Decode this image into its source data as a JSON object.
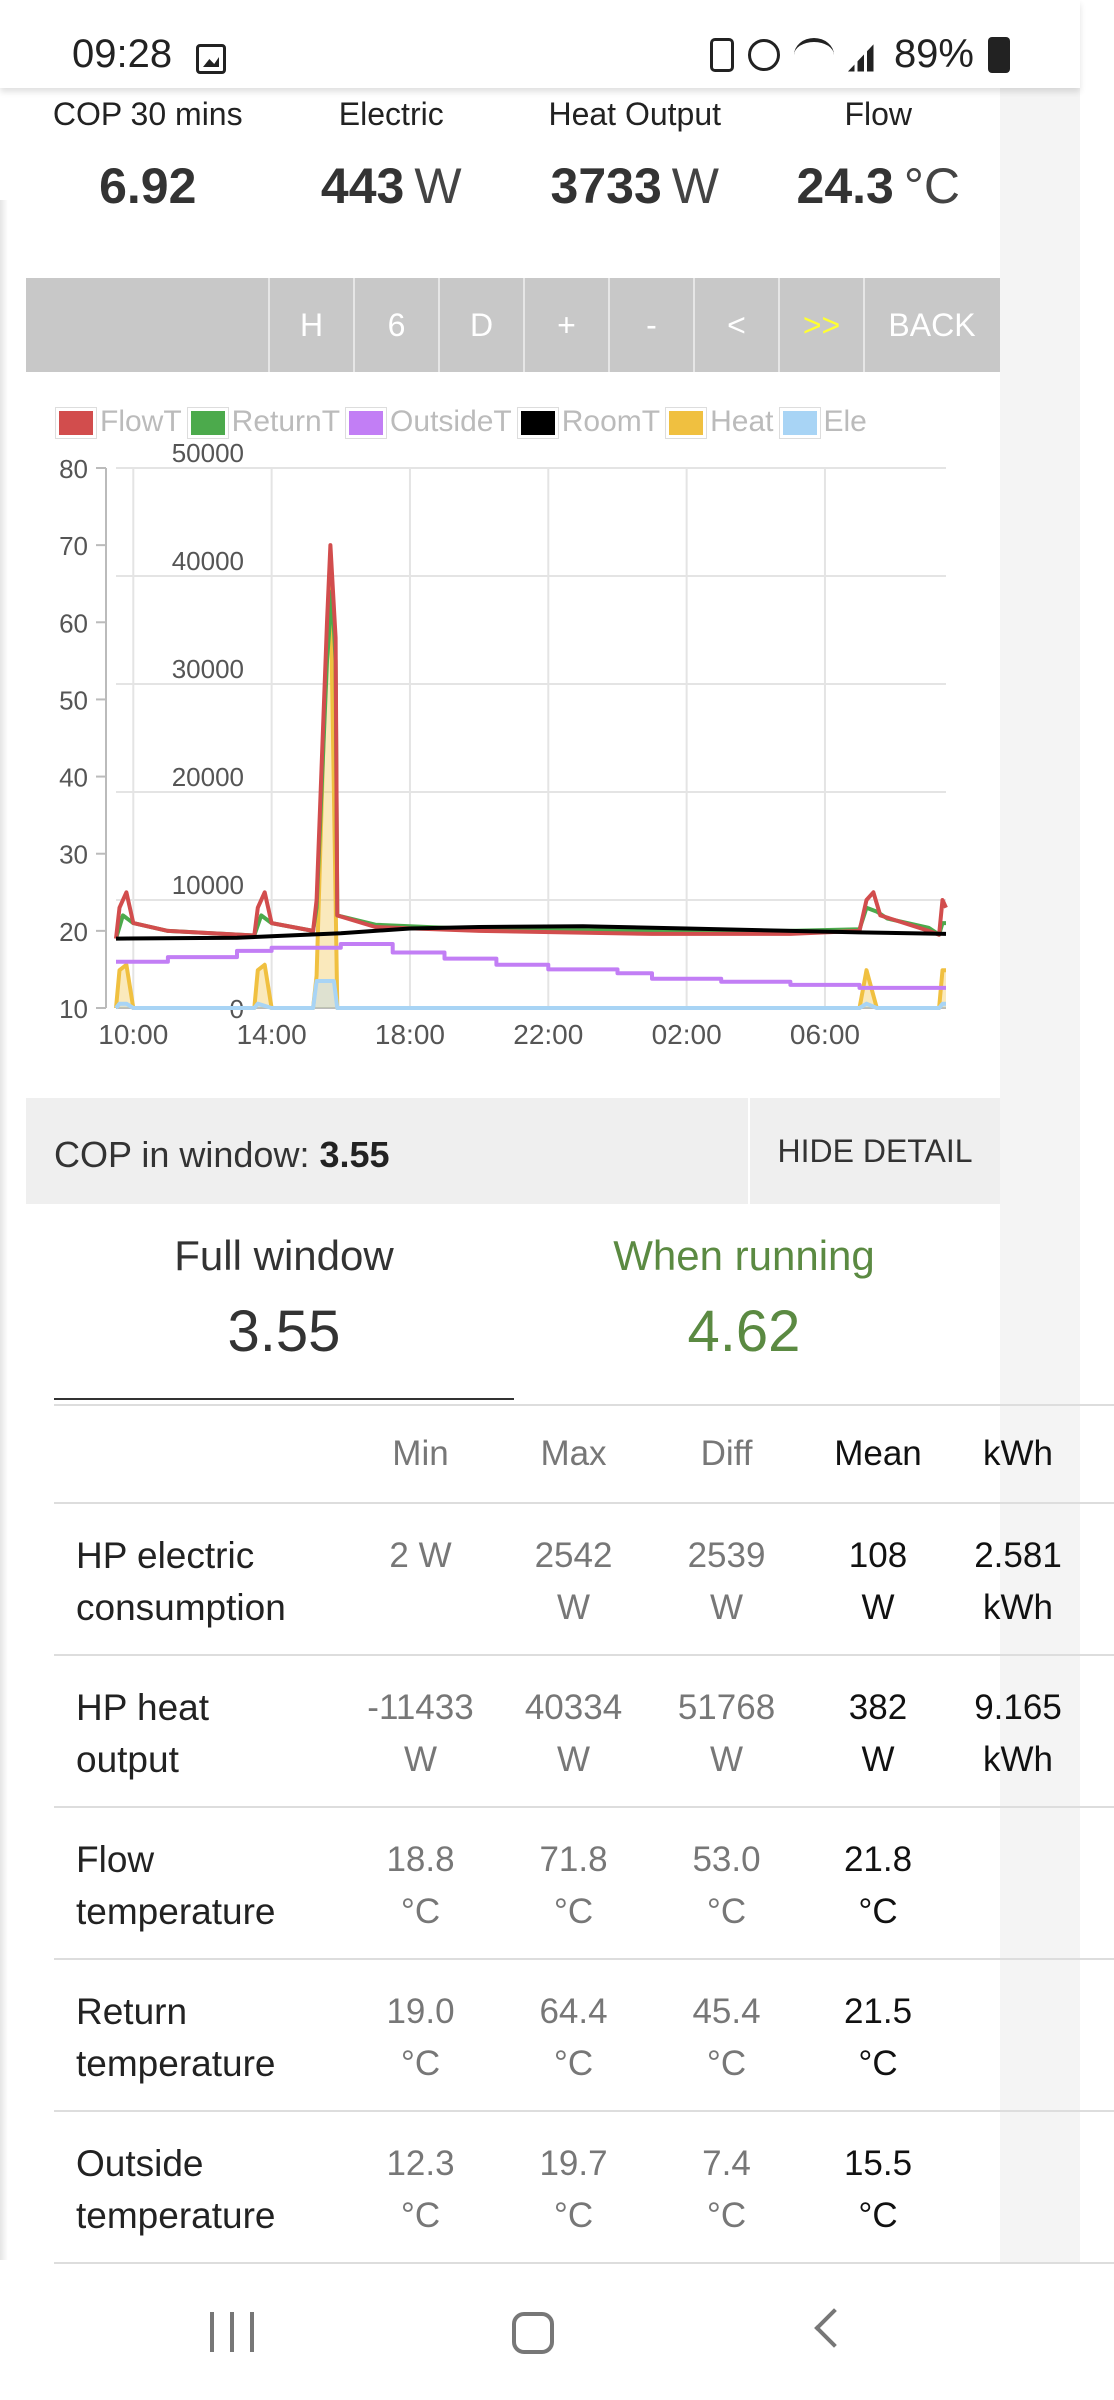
{
  "status_bar": {
    "time": "09:28",
    "battery_percent": "89%",
    "icons": [
      "gallery-icon",
      "battery-saver-icon",
      "alarm-icon",
      "wifi-icon",
      "signal-icon",
      "battery-icon"
    ]
  },
  "metrics": [
    {
      "label": "COP 30 mins",
      "value": "6.92",
      "unit": ""
    },
    {
      "label": "Electric",
      "value": "443",
      "unit": "W"
    },
    {
      "label": "Heat Output",
      "value": "3733",
      "unit": "W"
    },
    {
      "label": "Flow",
      "value": "24.3",
      "unit": "°C"
    }
  ],
  "toolbar": {
    "buttons": [
      "H",
      "6",
      "D",
      "+",
      "-",
      "<",
      ">>",
      "BACK"
    ],
    "active": ">>"
  },
  "legend": [
    {
      "name": "FlowT",
      "color": "#d24d4d"
    },
    {
      "name": "ReturnT",
      "color": "#4caa4c"
    },
    {
      "name": "OutsideT",
      "color": "#c27ef5"
    },
    {
      "name": "RoomT",
      "color": "#000000"
    },
    {
      "name": "Heat",
      "color": "#f0c040"
    },
    {
      "name": "Ele",
      "color": "#a8d4f5"
    }
  ],
  "chart_data": {
    "type": "line",
    "x_ticks": [
      "10:00",
      "14:00",
      "18:00",
      "22:00",
      "02:00",
      "06:00"
    ],
    "y_left_ticks": [
      10,
      20,
      30,
      40,
      50,
      60,
      70,
      80
    ],
    "y_right_ticks": [
      0,
      10000,
      20000,
      30000,
      40000,
      50000
    ],
    "y_left_range": [
      10,
      80
    ],
    "y_right_range": [
      0,
      50000
    ],
    "x_range_hours": [
      9.5,
      33.5
    ],
    "grid": true,
    "series": [
      {
        "name": "FlowT",
        "axis": "left",
        "color": "#d24d4d",
        "points": [
          [
            9.5,
            19
          ],
          [
            9.6,
            23
          ],
          [
            9.8,
            25
          ],
          [
            10.0,
            21
          ],
          [
            11.0,
            20
          ],
          [
            13.5,
            19.4
          ],
          [
            13.6,
            23
          ],
          [
            13.8,
            25
          ],
          [
            14.0,
            21
          ],
          [
            15.2,
            20
          ],
          [
            15.3,
            24
          ],
          [
            15.6,
            60
          ],
          [
            15.7,
            70
          ],
          [
            15.85,
            58
          ],
          [
            15.9,
            22
          ],
          [
            17,
            20.5
          ],
          [
            20,
            20
          ],
          [
            25,
            19.6
          ],
          [
            29,
            19.6
          ],
          [
            31,
            20
          ],
          [
            31.2,
            24
          ],
          [
            31.4,
            25
          ],
          [
            31.6,
            22
          ],
          [
            33,
            20
          ],
          [
            33.3,
            19.5
          ],
          [
            33.4,
            24
          ],
          [
            33.5,
            23
          ]
        ]
      },
      {
        "name": "ReturnT",
        "axis": "left",
        "color": "#4caa4c",
        "points": [
          [
            9.5,
            19
          ],
          [
            9.7,
            22
          ],
          [
            10.0,
            21
          ],
          [
            11.0,
            20
          ],
          [
            13.5,
            19.4
          ],
          [
            13.7,
            22
          ],
          [
            14.0,
            21
          ],
          [
            15.2,
            20
          ],
          [
            15.3,
            23
          ],
          [
            15.6,
            55
          ],
          [
            15.75,
            64
          ],
          [
            15.85,
            55
          ],
          [
            15.9,
            22
          ],
          [
            17,
            20.8
          ],
          [
            20,
            20.2
          ],
          [
            25,
            20
          ],
          [
            29,
            20
          ],
          [
            31,
            20.2
          ],
          [
            31.2,
            23
          ],
          [
            31.5,
            22.5
          ],
          [
            31.8,
            21.6
          ],
          [
            33,
            20.4
          ],
          [
            33.3,
            19.5
          ],
          [
            33.4,
            21
          ],
          [
            33.5,
            21
          ]
        ]
      },
      {
        "name": "OutsideT",
        "axis": "left",
        "color": "#c27ef5",
        "points": [
          [
            9.5,
            16
          ],
          [
            11,
            16
          ],
          [
            11,
            16.6
          ],
          [
            13,
            16.6
          ],
          [
            13,
            17.4
          ],
          [
            14,
            17.4
          ],
          [
            14,
            17.8
          ],
          [
            16,
            17.8
          ],
          [
            16,
            18.3
          ],
          [
            17.5,
            18.3
          ],
          [
            17.5,
            17.2
          ],
          [
            19,
            17.2
          ],
          [
            19,
            16.4
          ],
          [
            20.5,
            16.4
          ],
          [
            20.5,
            15.6
          ],
          [
            22,
            15.6
          ],
          [
            22,
            15
          ],
          [
            24,
            15
          ],
          [
            24,
            14.5
          ],
          [
            25,
            14.5
          ],
          [
            25,
            13.8
          ],
          [
            27,
            13.8
          ],
          [
            27,
            13.4
          ],
          [
            29,
            13.4
          ],
          [
            29,
            13
          ],
          [
            31,
            13
          ],
          [
            31,
            12.6
          ],
          [
            33.5,
            12.6
          ]
        ]
      },
      {
        "name": "RoomT",
        "axis": "left",
        "color": "#000000",
        "points": [
          [
            9.5,
            19
          ],
          [
            13,
            19.1
          ],
          [
            16,
            19.7
          ],
          [
            18,
            20.3
          ],
          [
            20,
            20.5
          ],
          [
            23,
            20.6
          ],
          [
            26,
            20.3
          ],
          [
            29,
            20
          ],
          [
            31,
            19.8
          ],
          [
            33.5,
            19.6
          ]
        ]
      },
      {
        "name": "Heat",
        "axis": "right",
        "color": "#f0c040",
        "points": [
          [
            9.5,
            0
          ],
          [
            9.6,
            3500
          ],
          [
            9.8,
            4000
          ],
          [
            10.0,
            0
          ],
          [
            13.5,
            0
          ],
          [
            13.6,
            3500
          ],
          [
            13.8,
            4000
          ],
          [
            14.0,
            0
          ],
          [
            15.2,
            0
          ],
          [
            15.3,
            3000
          ],
          [
            15.55,
            30000
          ],
          [
            15.7,
            40000
          ],
          [
            15.8,
            20000
          ],
          [
            15.9,
            0
          ],
          [
            31.0,
            0
          ],
          [
            31.2,
            3500
          ],
          [
            31.5,
            0
          ],
          [
            33.3,
            0
          ],
          [
            33.4,
            3500
          ],
          [
            33.5,
            3500
          ]
        ]
      },
      {
        "name": "Ele",
        "axis": "right",
        "color": "#a8d4f5",
        "points": [
          [
            9.5,
            0
          ],
          [
            9.6,
            400
          ],
          [
            9.8,
            400
          ],
          [
            10.0,
            0
          ],
          [
            13.5,
            0
          ],
          [
            13.6,
            400
          ],
          [
            14.0,
            0
          ],
          [
            15.2,
            0
          ],
          [
            15.3,
            2500
          ],
          [
            15.8,
            2500
          ],
          [
            15.9,
            0
          ],
          [
            31,
            0
          ],
          [
            31.2,
            400
          ],
          [
            31.5,
            0
          ],
          [
            33.3,
            0
          ],
          [
            33.4,
            400
          ],
          [
            33.5,
            400
          ]
        ]
      }
    ]
  },
  "cop_window": {
    "label": "COP in window:",
    "value": "3.55",
    "hide_detail": "HIDE DETAIL"
  },
  "tabs": {
    "full": {
      "label": "Full window",
      "value": "3.55"
    },
    "running": {
      "label": "When running",
      "value": "4.62"
    }
  },
  "table": {
    "headers": [
      "",
      "Min",
      "Max",
      "Diff",
      "Mean",
      "kWh"
    ],
    "rows": [
      {
        "name": [
          "HP electric",
          "consumption"
        ],
        "min": [
          "2 W",
          ""
        ],
        "max": [
          "2542",
          "W"
        ],
        "diff": [
          "2539",
          "W"
        ],
        "mean": [
          "108",
          "W"
        ],
        "kwh": [
          "2.581",
          "kWh"
        ]
      },
      {
        "name": [
          "HP heat",
          "output"
        ],
        "min": [
          "-11433",
          "W"
        ],
        "max": [
          "40334",
          "W"
        ],
        "diff": [
          "51768",
          "W"
        ],
        "mean": [
          "382",
          "W"
        ],
        "kwh": [
          "9.165",
          "kWh"
        ]
      },
      {
        "name": [
          "Flow",
          "temperature"
        ],
        "min": [
          "18.8",
          "°C"
        ],
        "max": [
          "71.8",
          "°C"
        ],
        "diff": [
          "53.0",
          "°C"
        ],
        "mean": [
          "21.8",
          "°C"
        ],
        "kwh": [
          "",
          ""
        ]
      },
      {
        "name": [
          "Return",
          "temperature"
        ],
        "min": [
          "19.0",
          "°C"
        ],
        "max": [
          "64.4",
          "°C"
        ],
        "diff": [
          "45.4",
          "°C"
        ],
        "mean": [
          "21.5",
          "°C"
        ],
        "kwh": [
          "",
          ""
        ]
      },
      {
        "name": [
          "Outside",
          "temperature"
        ],
        "min": [
          "12.3",
          "°C"
        ],
        "max": [
          "19.7",
          "°C"
        ],
        "diff": [
          "7.4",
          "°C"
        ],
        "mean": [
          "15.5",
          "°C"
        ],
        "kwh": [
          "",
          ""
        ]
      }
    ]
  },
  "nav": {
    "icons": [
      "recent-apps-icon",
      "home-icon",
      "back-icon"
    ]
  }
}
